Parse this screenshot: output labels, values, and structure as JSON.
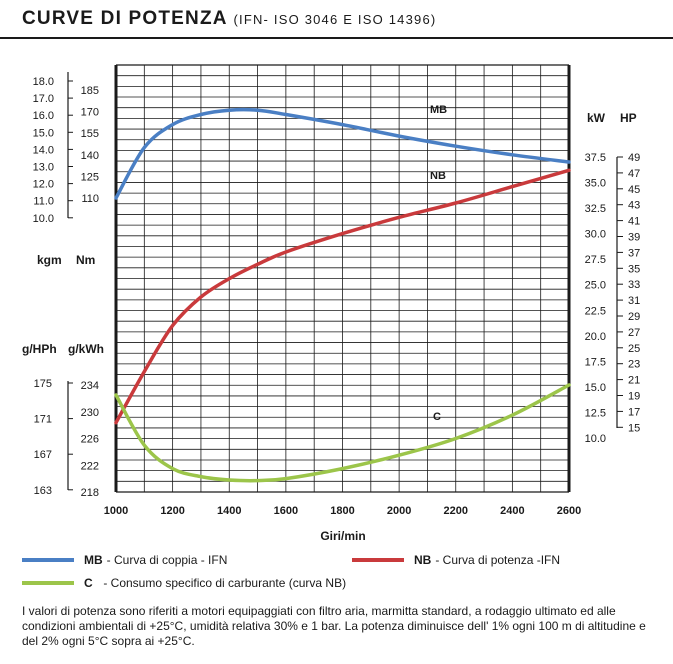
{
  "header": {
    "title": "CURVE DI POTENZA",
    "subtitle": "(IFN- ISO 3046 E ISO 14396)"
  },
  "colors": {
    "mb": "#4a7fc4",
    "nb": "#c93a3c",
    "c": "#9cc54a",
    "grid": "#1a1a1a"
  },
  "chart_data": {
    "type": "line",
    "xlabel": "Giri/min",
    "x_ticks": [
      "1000",
      "1200",
      "1400",
      "1600",
      "1800",
      "2000",
      "2200",
      "2400",
      "2600"
    ],
    "xlim": [
      1000,
      2600
    ],
    "axes": {
      "torque_kgm": {
        "label": "kgm",
        "ticks": [
          "18.0",
          "17.0",
          "16.0",
          "15.0",
          "14.0",
          "13.0",
          "12.0",
          "11.0",
          "10.0"
        ]
      },
      "torque_nm": {
        "label": "Nm",
        "ticks": [
          "185",
          "170",
          "155",
          "140",
          "125",
          "110"
        ],
        "range": [
          110,
          185
        ]
      },
      "consumption_gph": {
        "label": "g/HPh",
        "ticks": [
          "175",
          "171",
          "167",
          "163"
        ]
      },
      "consumption_gkwh": {
        "label": "g/kWh",
        "ticks": [
          "234",
          "230",
          "226",
          "222",
          "218"
        ],
        "range": [
          218,
          234
        ]
      },
      "power_kw": {
        "label": "kW",
        "ticks": [
          "37.5",
          "35.0",
          "32.5",
          "30.0",
          "27.5",
          "25.0",
          "22.5",
          "20.0",
          "17.5",
          "15.0",
          "12.5",
          "10.0"
        ],
        "range": [
          10,
          37.5
        ]
      },
      "power_hp": {
        "label": "HP",
        "ticks": [
          "49",
          "47",
          "45",
          "43",
          "41",
          "39",
          "37",
          "35",
          "33",
          "31",
          "29",
          "27",
          "25",
          "23",
          "21",
          "19",
          "17",
          "15"
        ]
      }
    },
    "series": [
      {
        "name": "MB",
        "axis": "torque_nm",
        "x": [
          1000,
          1100,
          1200,
          1300,
          1400,
          1500,
          1600,
          1800,
          2000,
          2200,
          2400,
          2600
        ],
        "y": [
          110,
          145,
          161,
          168,
          171,
          171,
          168,
          161,
          153,
          146,
          140,
          135
        ]
      },
      {
        "name": "NB",
        "axis": "power_kw",
        "x": [
          1000,
          1100,
          1200,
          1300,
          1400,
          1500,
          1600,
          1800,
          2000,
          2200,
          2400,
          2600
        ],
        "y": [
          11.5,
          16.5,
          21,
          23.8,
          25.6,
          27.0,
          28.2,
          30.0,
          31.6,
          33.0,
          34.6,
          36.2
        ]
      },
      {
        "name": "C",
        "axis": "consumption_gkwh",
        "x": [
          1000,
          1100,
          1200,
          1300,
          1400,
          1500,
          1600,
          1800,
          2000,
          2200,
          2400,
          2600
        ],
        "y": [
          232.5,
          225,
          221.5,
          220.3,
          219.8,
          219.7,
          220,
          221.5,
          223.5,
          226,
          229.5,
          234
        ]
      }
    ]
  },
  "legend": {
    "mb": {
      "code": "MB",
      "text": "- Curva di coppia - IFN"
    },
    "nb": {
      "code": "NB",
      "text": "- Curva di potenza  -IFN"
    },
    "c": {
      "code": "C",
      "text": "  - Consumo specifico di carburante (curva NB)"
    }
  },
  "note": "I valori di potenza sono riferiti a motori equipaggiati con filtro aria, marmitta standard, a rodaggio ultimato ed alle condizioni ambientali di +25°C, umidità relativa 30% e 1 bar. La potenza diminuisce dell' 1% ogni 100 m di altitudine e del 2% ogni 5°C sopra ai +25°C."
}
